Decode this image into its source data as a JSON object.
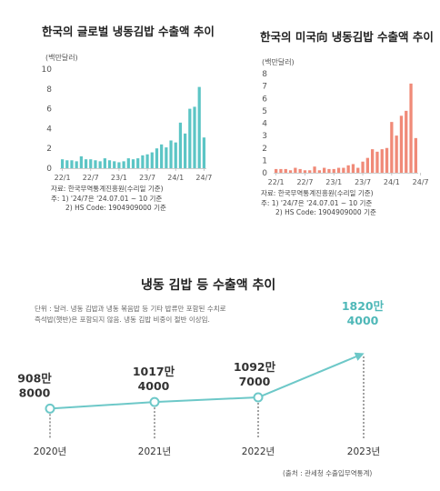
{
  "chart_data": [
    {
      "type": "bar",
      "title": "한국의 글로벌 냉동김밥 수출액 추이",
      "unit": "(백만달러)",
      "color": "#5cc5c5",
      "ylim": [
        0,
        10
      ],
      "yticks": [
        "0",
        "2",
        "4",
        "6",
        "8",
        "10"
      ],
      "xtick_labels": [
        "22/1",
        "22/7",
        "23/1",
        "23/7",
        "24/1",
        "24/7"
      ],
      "values": [
        0.9,
        0.8,
        0.8,
        0.7,
        1.2,
        0.9,
        0.9,
        0.8,
        0.7,
        1.0,
        0.8,
        0.7,
        0.6,
        0.7,
        1.0,
        0.9,
        1.0,
        1.3,
        1.4,
        1.6,
        2.0,
        2.4,
        2.1,
        2.8,
        2.6,
        4.6,
        3.5,
        6.0,
        6.2,
        8.2,
        3.1
      ],
      "notes": [
        "자료: 한국무역통계진흥원(수리일 기준)",
        "주: 1) '24/7은 '24.07.01 ~ 10 기준",
        "2) HS Code: 1904909000 기준"
      ]
    },
    {
      "type": "bar",
      "title": "한국의 미국向 냉동김밥 수출액 추이",
      "unit": "(백만달러)",
      "color": "#f08a78",
      "ylim": [
        0,
        8
      ],
      "yticks": [
        "0",
        "1",
        "2",
        "3",
        "4",
        "5",
        "6",
        "7",
        "8"
      ],
      "xtick_labels": [
        "22/1",
        "22/7",
        "23/1",
        "23/7",
        "24/1",
        "24/7"
      ],
      "values": [
        0.3,
        0.3,
        0.3,
        0.2,
        0.4,
        0.3,
        0.2,
        0.2,
        0.5,
        0.2,
        0.4,
        0.3,
        0.3,
        0.4,
        0.4,
        0.6,
        0.7,
        0.4,
        0.9,
        1.2,
        1.9,
        1.7,
        1.9,
        2.0,
        4.1,
        3.0,
        4.6,
        5.0,
        7.2,
        2.8
      ],
      "notes": [
        "자료: 한국무역통계진흥원(수리일 기준)",
        "주: 1) '24/7은 '24.07.01 ~ 10 기준",
        "2) HS Code: 1904909000 기준"
      ]
    },
    {
      "type": "line",
      "title": "냉동 김밥 등 수출액 추이",
      "note": [
        "단위 : 달러. 냉동 김밥과 냉동 볶음밥 등 기타 밥류만 포함된 수치로",
        "즉석밥(햇반)은 포함되지 않음. 냉동 김밥 비중이 절반 이상임."
      ],
      "source": "(출처 : 관세청 수출입무역통계)",
      "color": "#6dc8c8",
      "highlight_color": "#4fb8b8",
      "x": [
        "2020년",
        "2021년",
        "2022년",
        "2023년"
      ],
      "y": [
        9088000,
        10174000,
        10927000,
        18204000
      ],
      "labels": [
        [
          "908만",
          "8000"
        ],
        [
          "1017만",
          "4000"
        ],
        [
          "1092만",
          "7000"
        ],
        [
          "1820만",
          "4000"
        ]
      ]
    }
  ]
}
